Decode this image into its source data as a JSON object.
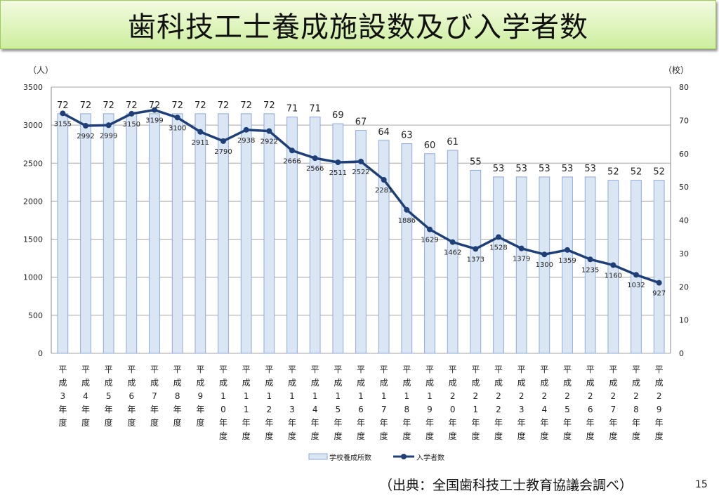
{
  "title": "歯科技工士養成施設数及び入学者数",
  "source": "（出典：全国歯科技工士教育協議会調べ）",
  "page_number": "15",
  "chart_data": {
    "type": "bar+line",
    "left_unit": "（人）",
    "right_unit": "（校）",
    "left_ylim": [
      0,
      3500
    ],
    "left_ticks": [
      0,
      500,
      1000,
      1500,
      2000,
      2500,
      3000,
      3500
    ],
    "right_ylim": [
      0,
      80
    ],
    "right_ticks": [
      0,
      10,
      20,
      30,
      40,
      50,
      60,
      70,
      80
    ],
    "grid": true,
    "legend_placement": "bottom",
    "categories": [
      "平成3年度",
      "平成4年度",
      "平成5年度",
      "平成6年度",
      "平成7年度",
      "平成8年度",
      "平成9年度",
      "平成10年度",
      "平成11年度",
      "平成12年度",
      "平成13年度",
      "平成14年度",
      "平成15年度",
      "平成16年度",
      "平成17年度",
      "平成18年度",
      "平成19年度",
      "平成20年度",
      "平成21年度",
      "平成22年度",
      "平成23年度",
      "平成24年度",
      "平成25年度",
      "平成26年度",
      "平成27年度",
      "平成28年度",
      "平成29年度"
    ],
    "series": [
      {
        "name": "学校養成所数",
        "type": "bar",
        "axis": "right",
        "color": "#dbe6f4",
        "edge": "#8eaadb",
        "values": [
          72,
          72,
          72,
          72,
          72,
          72,
          72,
          72,
          72,
          72,
          71,
          71,
          69,
          67,
          64,
          63,
          60,
          61,
          55,
          53,
          53,
          53,
          53,
          53,
          52,
          52,
          52
        ]
      },
      {
        "name": "入学者数",
        "type": "line",
        "axis": "left",
        "color": "#1f3f78",
        "values": [
          3155,
          2992,
          2999,
          3150,
          3199,
          3100,
          2911,
          2790,
          2938,
          2922,
          2666,
          2566,
          2511,
          2522,
          2281,
          1886,
          1629,
          1462,
          1373,
          1528,
          1379,
          1300,
          1359,
          1235,
          1160,
          1032,
          927
        ]
      }
    ]
  }
}
